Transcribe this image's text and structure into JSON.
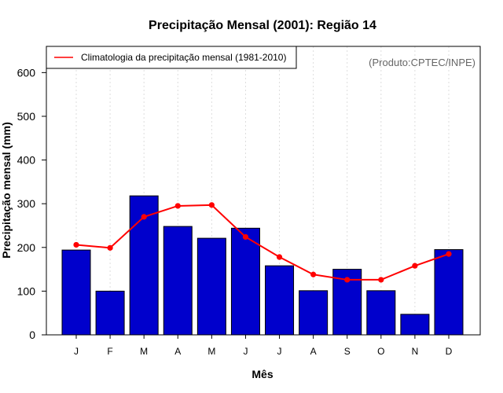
{
  "chart_data": {
    "type": "bar",
    "title": "Precipitação Mensal (2001): Região 14",
    "xlabel": "Mês",
    "ylabel": "Precipitação mensal (mm)",
    "categories": [
      "J",
      "F",
      "M",
      "A",
      "M",
      "J",
      "J",
      "A",
      "S",
      "O",
      "N",
      "D"
    ],
    "ylim": [
      0,
      660
    ],
    "yticks": [
      0,
      100,
      200,
      300,
      400,
      500,
      600
    ],
    "grid": true,
    "series": [
      {
        "name": "Precipitação mensal (2001)",
        "kind": "bar",
        "color": "#0000cc",
        "values": [
          194,
          100,
          318,
          248,
          221,
          244,
          158,
          101,
          150,
          101,
          47,
          195
        ]
      },
      {
        "name": "Climatologia da precipitação mensal (1981-2010)",
        "kind": "line",
        "color": "#ff0000",
        "values": [
          206,
          199,
          270,
          295,
          297,
          224,
          178,
          138,
          126,
          126,
          158,
          185
        ]
      }
    ],
    "legend": {
      "position": "top-left",
      "entries": [
        "Climatologia da precipitação mensal (1981-2010)"
      ]
    },
    "annotation": "(Produto:CPTEC/INPE)"
  }
}
